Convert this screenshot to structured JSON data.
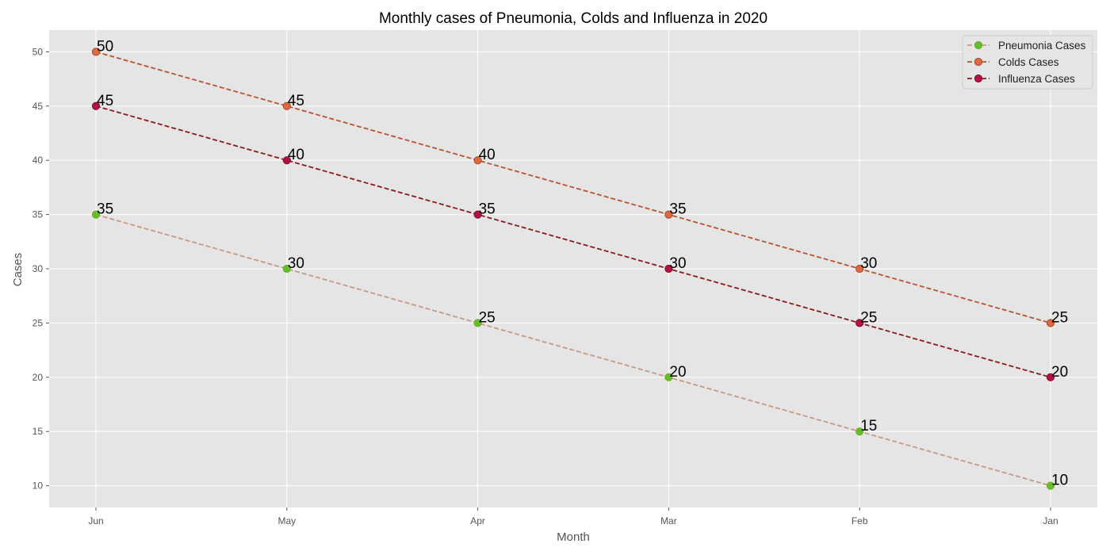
{
  "chart_data": {
    "type": "line",
    "title": "Monthly cases of Pneumonia, Colds and Influenza in 2020",
    "xlabel": "Month",
    "ylabel": "Cases",
    "categories": [
      "Jun",
      "May",
      "Apr",
      "Mar",
      "Feb",
      "Jan"
    ],
    "ylim": [
      8,
      52
    ],
    "yticks": [
      10,
      15,
      20,
      25,
      30,
      35,
      40,
      45,
      50
    ],
    "grid": true,
    "legend_position": "top-right",
    "series": [
      {
        "name": "Pneumonia Cases",
        "values": [
          35,
          30,
          25,
          20,
          15,
          10
        ],
        "line_color": "#c49a85",
        "marker_color": "#5dc22a",
        "marker_edge": "#7fa32a"
      },
      {
        "name": "Colds Cases",
        "values": [
          50,
          45,
          40,
          35,
          30,
          25
        ],
        "line_color": "#b9532f",
        "marker_color": "#e0693f",
        "marker_edge": "#a0492d"
      },
      {
        "name": "Influenza Cases",
        "values": [
          45,
          40,
          35,
          30,
          25,
          20
        ],
        "line_color": "#8b1a1a",
        "marker_color": "#b5104a",
        "marker_edge": "#7a1420"
      }
    ]
  }
}
